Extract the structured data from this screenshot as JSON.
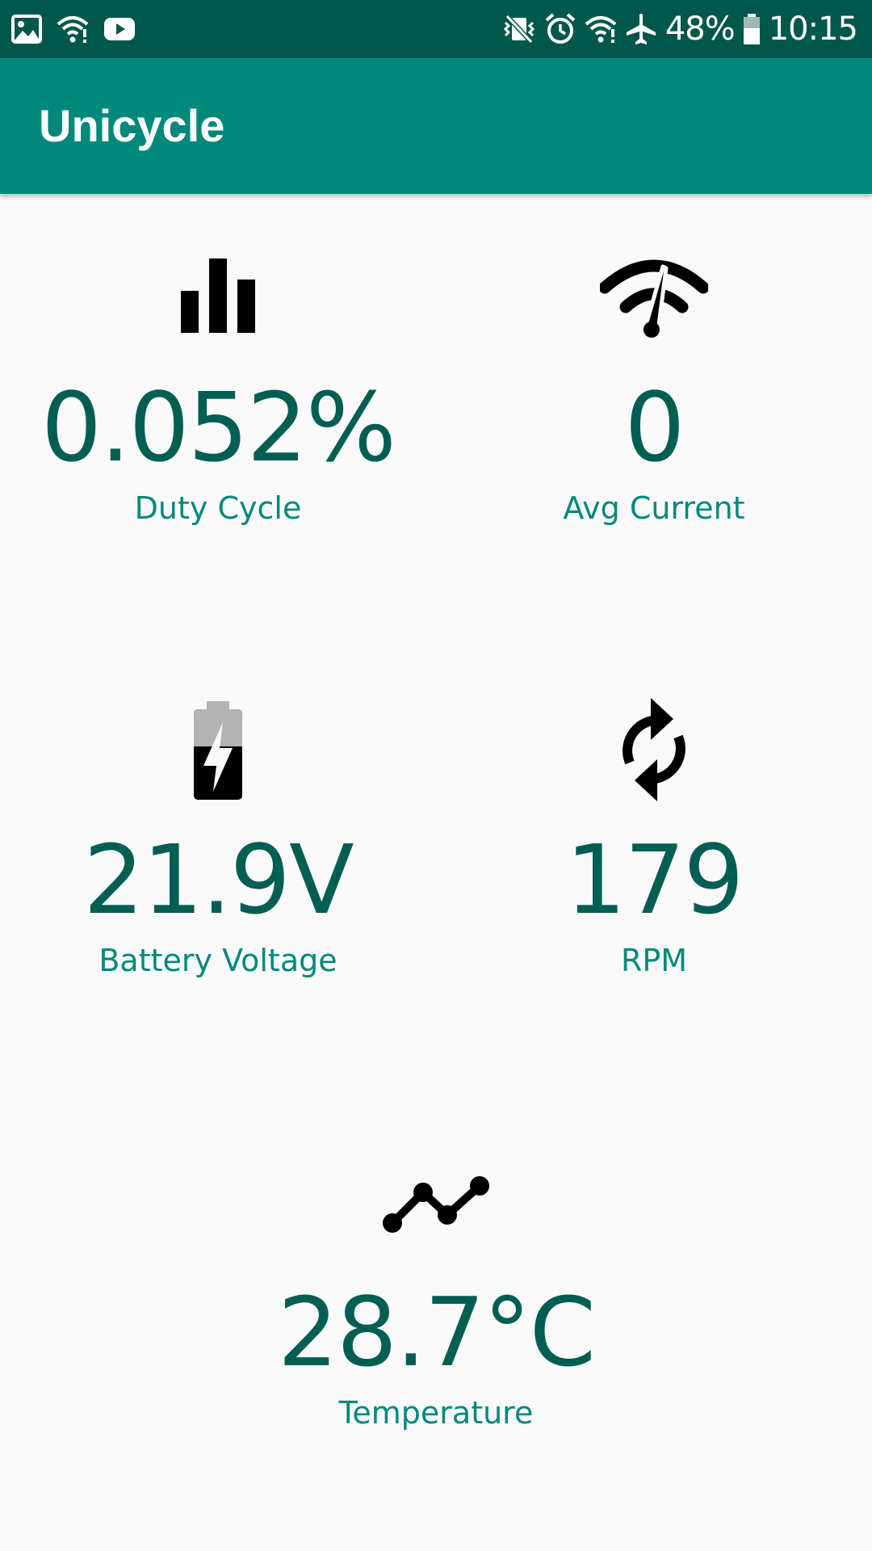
{
  "status_bar": {
    "battery_percent": "48%",
    "time": "10:15",
    "left_icons": [
      "image-icon",
      "wifi-question-icon",
      "youtube-icon"
    ],
    "right_icons": [
      "vibrate-mute-icon",
      "alarm-icon",
      "wifi-question-icon",
      "airplane-icon",
      "battery-icon"
    ]
  },
  "app_bar": {
    "title": "Unicycle"
  },
  "colors": {
    "status_bar": "#00574b",
    "app_bar": "#00897b",
    "value_text": "#005e53",
    "label_text": "#00897b",
    "background": "#fafafa"
  },
  "metrics": {
    "duty_cycle": {
      "value": "0.052%",
      "label": "Duty Cycle",
      "icon": "bar-chart-icon"
    },
    "avg_current": {
      "value": "0",
      "label": "Avg Current",
      "icon": "speedometer-icon"
    },
    "battery_voltage": {
      "value": "21.9V",
      "label": "Battery Voltage",
      "icon": "battery-charging-icon"
    },
    "rpm": {
      "value": "179",
      "label": "RPM",
      "icon": "rotation-icon"
    },
    "temperature": {
      "value": "28.7°C",
      "label": "Temperature",
      "icon": "line-chart-icon"
    }
  }
}
